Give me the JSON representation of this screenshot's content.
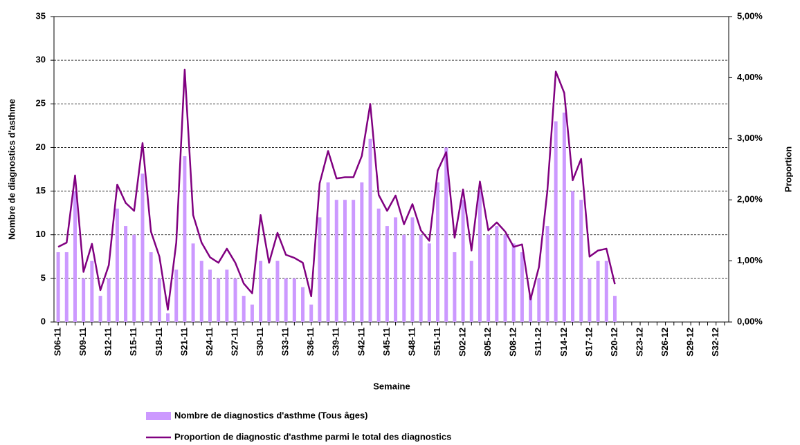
{
  "chart_data": {
    "type": "combo",
    "y_label": "Nombre de diagnostics d'asthme",
    "y2_label": "Proportion",
    "x_label": "Semaine",
    "categories": [
      "S06-11",
      null,
      null,
      "S09-11",
      null,
      null,
      "S12-11",
      null,
      null,
      "S15-11",
      null,
      null,
      "S18-11",
      null,
      null,
      "S21-11",
      null,
      null,
      "S24-11",
      null,
      null,
      "S27-11",
      null,
      null,
      "S30-11",
      null,
      null,
      "S33-11",
      null,
      null,
      "S36-11",
      null,
      null,
      "S39-11",
      null,
      null,
      "S42-11",
      null,
      null,
      "S45-11",
      null,
      null,
      "S48-11",
      null,
      null,
      "S51-11",
      null,
      null,
      "S02-12",
      null,
      null,
      "S05-12",
      null,
      null,
      "S08-12",
      null,
      null,
      "S11-12",
      null,
      null,
      "S14-12",
      null,
      null,
      "S17-12",
      null,
      null,
      "S20-12",
      null,
      null,
      "S23-12",
      null,
      null,
      "S26-12",
      null,
      null,
      "S29-12",
      null,
      null,
      "S32-12",
      null
    ],
    "series": [
      {
        "name": "Nombre de diagnostics d'asthme (Tous âges)",
        "type": "bar",
        "axis": "y",
        "color": "#cc99ff",
        "values": [
          8,
          8,
          15,
          5,
          7,
          3,
          5,
          13,
          11,
          10,
          17,
          8,
          5,
          1,
          6,
          19,
          9,
          7,
          6,
          5,
          6,
          5,
          3,
          2,
          7,
          5,
          7,
          5,
          5,
          4,
          2,
          12,
          16,
          14,
          14,
          14,
          16,
          21,
          13,
          11,
          12,
          10,
          12,
          10,
          9,
          16,
          20,
          8,
          14,
          7,
          15,
          10,
          11,
          10,
          9,
          8,
          3,
          5,
          11,
          23,
          24,
          15,
          14,
          5,
          7,
          7,
          3,
          null,
          null,
          null,
          null,
          null,
          null,
          null,
          null,
          null,
          null,
          null,
          null,
          null
        ]
      },
      {
        "name": "Proportion de diagnostic d'asthme parmi le total des diagnostics",
        "type": "line",
        "axis": "y2",
        "color": "#800080",
        "values": [
          1.23,
          1.3,
          2.4,
          0.82,
          1.28,
          0.52,
          0.93,
          2.25,
          1.95,
          1.82,
          2.93,
          1.48,
          1.07,
          0.2,
          1.3,
          4.13,
          1.75,
          1.3,
          1.06,
          0.97,
          1.2,
          0.97,
          0.63,
          0.47,
          1.75,
          0.97,
          1.46,
          1.1,
          1.05,
          0.97,
          0.42,
          2.27,
          2.8,
          2.35,
          2.37,
          2.37,
          2.72,
          3.57,
          2.08,
          1.82,
          2.07,
          1.6,
          1.93,
          1.5,
          1.33,
          2.48,
          2.78,
          1.38,
          2.17,
          1.17,
          2.3,
          1.5,
          1.63,
          1.48,
          1.23,
          1.27,
          0.37,
          0.9,
          2.15,
          4.1,
          3.75,
          2.32,
          2.67,
          1.07,
          1.17,
          1.2,
          0.62,
          null,
          null,
          null,
          null,
          null,
          null,
          null,
          null,
          null,
          null,
          null,
          null,
          null
        ]
      }
    ],
    "ylim": [
      0,
      35
    ],
    "yticks": [
      0,
      5,
      10,
      15,
      20,
      25,
      30,
      35
    ],
    "y2lim": [
      0,
      5
    ],
    "y2ticks": [
      {
        "value": 0,
        "label": "0,00%"
      },
      {
        "value": 1,
        "label": "1,00%"
      },
      {
        "value": 2,
        "label": "2,00%"
      },
      {
        "value": 3,
        "label": "3,00%"
      },
      {
        "value": 4,
        "label": "4,00%"
      },
      {
        "value": 5,
        "label": "5,00%"
      }
    ],
    "grid": true,
    "legend": "bottom"
  }
}
